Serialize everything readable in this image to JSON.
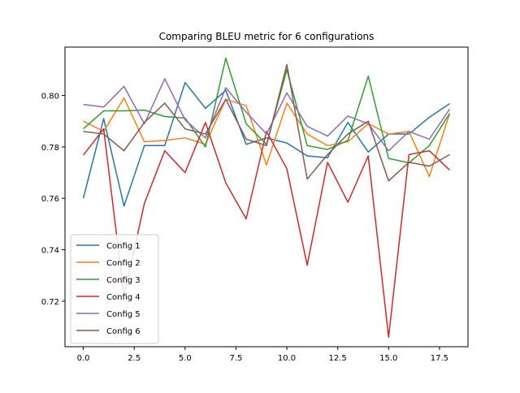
{
  "chart_data": {
    "type": "line",
    "title": "Comparing BLEU metric for 6 configurations",
    "xlabel": "",
    "ylabel": "",
    "xlim": [
      -0.9,
      18.9
    ],
    "ylim": [
      0.7023,
      0.8188
    ],
    "x_ticks": [
      0,
      2.5,
      5,
      7.5,
      10,
      12.5,
      15,
      17.5
    ],
    "x_tick_labels": [
      "0.0",
      "2.5",
      "5.0",
      "7.5",
      "10.0",
      "12.5",
      "15.0",
      "17.5"
    ],
    "y_ticks": [
      0.72,
      0.74,
      0.76,
      0.78,
      0.8
    ],
    "y_tick_labels": [
      "0.72",
      "0.74",
      "0.76",
      "0.78",
      "0.80"
    ],
    "grid": false,
    "legend_position": "lower-left",
    "x": [
      0,
      1,
      2,
      3,
      4,
      5,
      6,
      7,
      8,
      9,
      10,
      11,
      12,
      13,
      14,
      15,
      16,
      17,
      18
    ],
    "series": [
      {
        "name": "Config 1",
        "color": "#1f77b4",
        "values": [
          0.76,
          0.791,
          0.757,
          0.7805,
          0.7805,
          0.805,
          0.795,
          0.802,
          0.781,
          0.7835,
          0.7815,
          0.7765,
          0.7758,
          0.7895,
          0.778,
          0.785,
          0.785,
          0.7915,
          0.7968
        ]
      },
      {
        "name": "Config 2",
        "color": "#ff7f0e",
        "values": [
          0.79,
          0.786,
          0.799,
          0.782,
          0.7825,
          0.7835,
          0.781,
          0.7985,
          0.796,
          0.773,
          0.797,
          0.785,
          0.7805,
          0.782,
          0.789,
          0.785,
          0.786,
          0.7685,
          0.793
        ]
      },
      {
        "name": "Config 3",
        "color": "#2ca02c",
        "values": [
          0.787,
          0.794,
          0.794,
          0.7943,
          0.7918,
          0.7912,
          0.78,
          0.8145,
          0.789,
          0.781,
          0.81,
          0.7805,
          0.779,
          0.7825,
          0.8075,
          0.7755,
          0.7738,
          0.7805,
          0.793
        ]
      },
      {
        "name": "Config 4",
        "color": "#d62728",
        "values": [
          0.7768,
          0.787,
          0.722,
          0.758,
          0.7785,
          0.77,
          0.7895,
          0.766,
          0.752,
          0.786,
          0.7715,
          0.734,
          0.774,
          0.7585,
          0.7765,
          0.706,
          0.777,
          0.7785,
          0.771
        ]
      },
      {
        "name": "Config 5",
        "color": "#9467bd",
        "values": [
          0.7965,
          0.7955,
          0.8035,
          0.789,
          0.8065,
          0.7905,
          0.7835,
          0.803,
          0.7935,
          0.785,
          0.801,
          0.788,
          0.7842,
          0.792,
          0.789,
          0.7785,
          0.786,
          0.783,
          0.7947
        ]
      },
      {
        "name": "Config 6",
        "color": "#8c564b",
        "values": [
          0.786,
          0.785,
          0.7785,
          0.7895,
          0.797,
          0.787,
          0.785,
          0.7985,
          0.783,
          0.7805,
          0.812,
          0.7675,
          0.777,
          0.785,
          0.79,
          0.7668,
          0.774,
          0.7725,
          0.777
        ]
      }
    ]
  }
}
